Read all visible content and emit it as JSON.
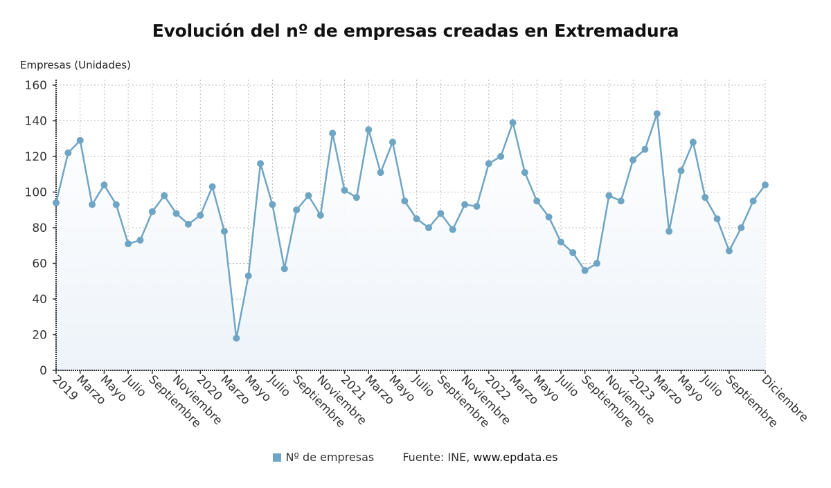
{
  "chart_data": {
    "type": "area",
    "title": "Evolución del nº de empresas creadas en Extremadura",
    "xlabel": "",
    "ylabel": "Empresas (Unidades)",
    "ylim": [
      0,
      160
    ],
    "yticks": [
      0,
      20,
      40,
      60,
      80,
      100,
      120,
      140,
      160
    ],
    "grid": true,
    "legend_position": "bottom",
    "x": [
      "2019-01",
      "2019-02",
      "2019-03",
      "2019-04",
      "2019-05",
      "2019-06",
      "2019-07",
      "2019-08",
      "2019-09",
      "2019-10",
      "2019-11",
      "2019-12",
      "2020-01",
      "2020-02",
      "2020-03",
      "2020-04",
      "2020-05",
      "2020-06",
      "2020-07",
      "2020-08",
      "2020-09",
      "2020-10",
      "2020-11",
      "2020-12",
      "2021-01",
      "2021-02",
      "2021-03",
      "2021-04",
      "2021-05",
      "2021-06",
      "2021-07",
      "2021-08",
      "2021-09",
      "2021-10",
      "2021-11",
      "2021-12",
      "2022-01",
      "2022-02",
      "2022-03",
      "2022-04",
      "2022-05",
      "2022-06",
      "2022-07",
      "2022-08",
      "2022-09",
      "2022-10",
      "2022-11",
      "2022-12",
      "2023-01",
      "2023-02",
      "2023-03",
      "2023-04",
      "2023-05",
      "2023-06",
      "2023-07",
      "2023-08",
      "2023-09",
      "2023-10",
      "2023-11",
      "2023-12"
    ],
    "x_tick_labels": [
      {
        "index": 0,
        "label": "2019"
      },
      {
        "index": 2,
        "label": "Marzo"
      },
      {
        "index": 4,
        "label": "Mayo"
      },
      {
        "index": 6,
        "label": "Julio"
      },
      {
        "index": 8,
        "label": "Septiembre"
      },
      {
        "index": 10,
        "label": "Noviembre"
      },
      {
        "index": 12,
        "label": "2020"
      },
      {
        "index": 14,
        "label": "Marzo"
      },
      {
        "index": 16,
        "label": "Mayo"
      },
      {
        "index": 18,
        "label": "Julio"
      },
      {
        "index": 20,
        "label": "Septiembre"
      },
      {
        "index": 22,
        "label": "Noviembre"
      },
      {
        "index": 24,
        "label": "2021"
      },
      {
        "index": 26,
        "label": "Marzo"
      },
      {
        "index": 28,
        "label": "Mayo"
      },
      {
        "index": 30,
        "label": "Julio"
      },
      {
        "index": 32,
        "label": "Septiembre"
      },
      {
        "index": 34,
        "label": "Noviembre"
      },
      {
        "index": 36,
        "label": "2022"
      },
      {
        "index": 38,
        "label": "Marzo"
      },
      {
        "index": 40,
        "label": "Mayo"
      },
      {
        "index": 42,
        "label": "Julio"
      },
      {
        "index": 44,
        "label": "Septiembre"
      },
      {
        "index": 46,
        "label": "Noviembre"
      },
      {
        "index": 48,
        "label": "2023"
      },
      {
        "index": 50,
        "label": "Marzo"
      },
      {
        "index": 52,
        "label": "Mayo"
      },
      {
        "index": 54,
        "label": "Julio"
      },
      {
        "index": 56,
        "label": "Septiembre"
      },
      {
        "index": 59,
        "label": "Diciembre"
      }
    ],
    "series": [
      {
        "name": "Nº de empresas",
        "color": "#6fa5c4",
        "values": [
          94,
          122,
          129,
          93,
          104,
          93,
          71,
          73,
          89,
          98,
          88,
          82,
          87,
          103,
          78,
          18,
          53,
          116,
          93,
          57,
          90,
          98,
          87,
          133,
          101,
          97,
          135,
          111,
          128,
          95,
          85,
          80,
          88,
          79,
          93,
          92,
          116,
          120,
          139,
          111,
          95,
          86,
          72,
          66,
          56,
          60,
          98,
          95,
          118,
          124,
          144,
          78,
          112,
          128,
          97,
          85,
          67,
          80,
          95,
          104
        ]
      }
    ],
    "source": "Fuente: INE, ",
    "source_site": "www.epdata.es"
  },
  "colors": {
    "line": "#6fa5c4",
    "marker": "#6fa5c4",
    "area_top": "#eef5fb",
    "area_bottom": "#f3f7fb",
    "grid": "#b8b8b8",
    "axis": "#333333"
  }
}
